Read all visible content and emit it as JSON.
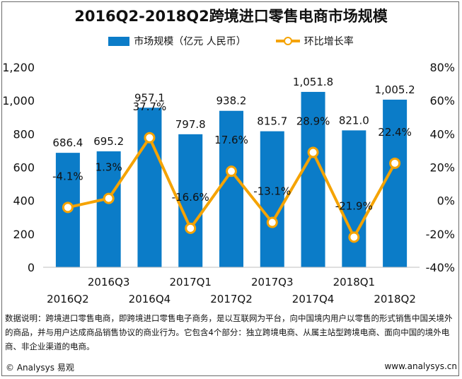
{
  "title": "2016Q2-2018Q2跨境进口零售电商市场规模",
  "legend": {
    "bar_label": "市场规模（亿元 人民币）",
    "line_label": "环比增长率"
  },
  "chart_data": {
    "type": "bar",
    "categories": [
      "2016Q2",
      "2016Q3",
      "2016Q4",
      "2017Q1",
      "2017Q2",
      "2017Q3",
      "2017Q4",
      "2018Q1",
      "2018Q2"
    ],
    "series": [
      {
        "name": "市场规模（亿元 人民币）",
        "type": "bar",
        "axis": "left",
        "values": [
          686.4,
          695.2,
          957.1,
          797.8,
          938.2,
          815.7,
          1051.8,
          821.0,
          1005.2
        ],
        "labels": [
          "686.4",
          "695.2",
          "957.1",
          "797.8",
          "938.2",
          "815.7",
          "1,051.8",
          "821.0",
          "1,005.2"
        ]
      },
      {
        "name": "环比增长率",
        "type": "line",
        "axis": "right",
        "values": [
          -4.1,
          1.3,
          37.7,
          -16.6,
          17.6,
          -13.1,
          28.9,
          -21.9,
          22.4
        ],
        "labels": [
          "-4.1%",
          "1.3%",
          "37.7%",
          "-16.6%",
          "17.6%",
          "-13.1%",
          "28.9%",
          "-21.9%",
          "22.4%"
        ]
      }
    ],
    "y_left": {
      "range": [
        0,
        1200
      ],
      "ticks": [
        0,
        200,
        400,
        600,
        800,
        1000,
        1200
      ],
      "tick_labels": [
        "0",
        "200",
        "400",
        "600",
        "800",
        "1,000",
        "1,200"
      ]
    },
    "y_right": {
      "range": [
        -40,
        80
      ],
      "ticks": [
        -40,
        -20,
        0,
        20,
        40,
        60,
        80
      ],
      "tick_labels": [
        "-40%",
        "-20%",
        "0%",
        "20%",
        "40%",
        "60%",
        "80%"
      ]
    },
    "grid": false,
    "legend_position": "top-center",
    "colors": {
      "bar": "#0b7cc8",
      "line": "#f5a300",
      "marker_fill": "#ffffff"
    }
  },
  "note": "数据说明：跨境进口零售电商，即跨境进口零售电子商务，是以互联网为平台，向中国境内用户以零售的形式销售中国关境外的商品，并与用户达成商品销售协议的商业行为。它包含4个部分：独立跨境电商、从属主站型跨境电商、面向中国的境外电商、非企业渠道的电商。",
  "footer": {
    "left": "© Analysys 易观",
    "right": "www.analysys.cn"
  }
}
